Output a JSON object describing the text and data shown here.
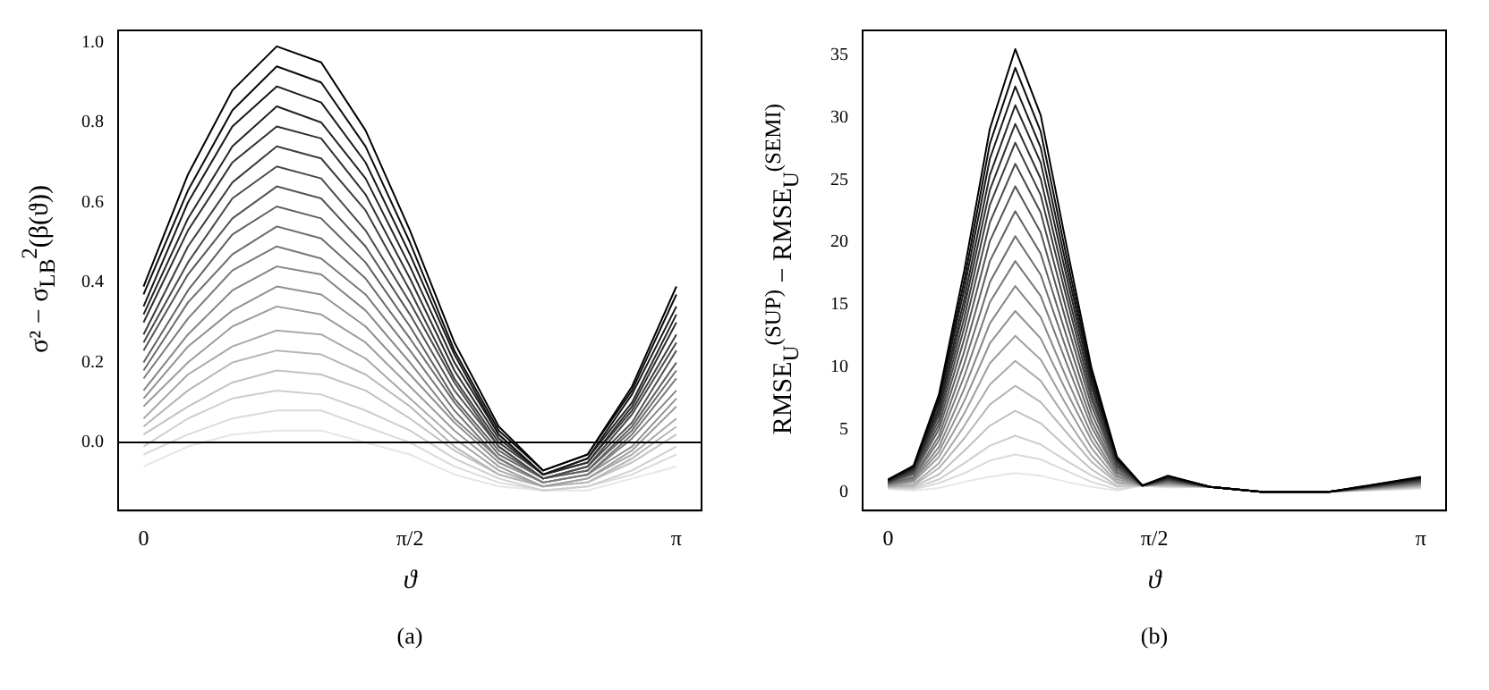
{
  "chart_data": [
    {
      "type": "line",
      "xlabel": "ϑ",
      "ylabel": "σ² − σ$_{LB}$$^{2}$(β(ϑ))",
      "annotations": [
        "(a)"
      ],
      "legend": false,
      "grid": false,
      "marker": "none",
      "x": [
        0,
        0.2618,
        0.5236,
        0.7854,
        1.0472,
        1.309,
        1.5708,
        1.8326,
        2.0944,
        2.3562,
        2.618,
        2.8798,
        3.1416
      ],
      "xlim": [
        -0.15,
        3.29
      ],
      "xticks": [
        {
          "value": 0,
          "label": "0"
        },
        {
          "value": 1.5708,
          "label": "π/2"
        },
        {
          "value": 3.1416,
          "label": "π"
        }
      ],
      "ylim": [
        -0.17,
        1.03
      ],
      "yticks": [
        {
          "value": 0,
          "label": "0.0"
        },
        {
          "value": 0.2,
          "label": "0.2"
        },
        {
          "value": 0.4,
          "label": "0.4"
        },
        {
          "value": 0.6,
          "label": "0.6"
        },
        {
          "value": 0.8,
          "label": "0.8"
        },
        {
          "value": 1,
          "label": "1.0"
        }
      ],
      "ref_lines": [
        {
          "axis": "y",
          "value": 0,
          "color": "#000000"
        }
      ],
      "series": [
        {
          "color": "#000000",
          "values": [
            0.39,
            0.67,
            0.88,
            0.99,
            0.95,
            0.78,
            0.53,
            0.25,
            0.04,
            -0.07,
            -0.03,
            0.14,
            0.39
          ]
        },
        {
          "color": "#0c0c0c",
          "values": [
            0.37,
            0.63,
            0.83,
            0.94,
            0.9,
            0.74,
            0.5,
            0.23,
            0.03,
            -0.07,
            -0.03,
            0.13,
            0.37
          ]
        },
        {
          "color": "#181818",
          "values": [
            0.34,
            0.6,
            0.79,
            0.89,
            0.85,
            0.7,
            0.47,
            0.22,
            0.02,
            -0.08,
            -0.04,
            0.12,
            0.34
          ]
        },
        {
          "color": "#242424",
          "values": [
            0.32,
            0.56,
            0.74,
            0.84,
            0.8,
            0.66,
            0.44,
            0.2,
            0.02,
            -0.08,
            -0.04,
            0.1,
            0.32
          ]
        },
        {
          "color": "#303030",
          "values": [
            0.3,
            0.53,
            0.7,
            0.79,
            0.76,
            0.62,
            0.41,
            0.18,
            0.01,
            -0.08,
            -0.05,
            0.09,
            0.3
          ]
        },
        {
          "color": "#3d3d3d",
          "values": [
            0.27,
            0.49,
            0.65,
            0.74,
            0.71,
            0.58,
            0.38,
            0.16,
            0.0,
            -0.08,
            -0.05,
            0.08,
            0.27
          ]
        },
        {
          "color": "#494949",
          "values": [
            0.25,
            0.45,
            0.61,
            0.69,
            0.66,
            0.53,
            0.35,
            0.15,
            -0.01,
            -0.09,
            -0.06,
            0.07,
            0.25
          ]
        },
        {
          "color": "#555555",
          "values": [
            0.23,
            0.42,
            0.56,
            0.64,
            0.61,
            0.49,
            0.32,
            0.13,
            -0.01,
            -0.09,
            -0.06,
            0.05,
            0.23
          ]
        },
        {
          "color": "#616161",
          "values": [
            0.2,
            0.38,
            0.52,
            0.59,
            0.56,
            0.45,
            0.29,
            0.11,
            -0.02,
            -0.09,
            -0.07,
            0.04,
            0.2
          ]
        },
        {
          "color": "#6d6d6d",
          "values": [
            0.18,
            0.35,
            0.47,
            0.54,
            0.51,
            0.41,
            0.26,
            0.1,
            -0.03,
            -0.09,
            -0.07,
            0.03,
            0.18
          ]
        },
        {
          "color": "#797979",
          "values": [
            0.16,
            0.31,
            0.43,
            0.49,
            0.46,
            0.37,
            0.23,
            0.08,
            -0.04,
            -0.1,
            -0.08,
            0.02,
            0.16
          ]
        },
        {
          "color": "#858585",
          "values": [
            0.13,
            0.27,
            0.38,
            0.44,
            0.42,
            0.33,
            0.2,
            0.06,
            -0.04,
            -0.1,
            -0.08,
            0.01,
            0.13
          ]
        },
        {
          "color": "#919191",
          "values": [
            0.11,
            0.24,
            0.33,
            0.39,
            0.37,
            0.29,
            0.17,
            0.05,
            -0.05,
            -0.1,
            -0.08,
            -0.01,
            0.11
          ]
        },
        {
          "color": "#9d9d9d",
          "values": [
            0.09,
            0.2,
            0.29,
            0.34,
            0.32,
            0.25,
            0.14,
            0.03,
            -0.06,
            -0.11,
            -0.09,
            -0.02,
            0.09
          ]
        },
        {
          "color": "#a9a9a9",
          "values": [
            0.06,
            0.17,
            0.24,
            0.28,
            0.27,
            0.21,
            0.11,
            0.01,
            -0.07,
            -0.11,
            -0.09,
            -0.03,
            0.06
          ]
        },
        {
          "color": "#b6b6b6",
          "values": [
            0.04,
            0.13,
            0.2,
            0.23,
            0.22,
            0.17,
            0.09,
            -0.01,
            -0.08,
            -0.11,
            -0.1,
            -0.04,
            0.04
          ]
        },
        {
          "color": "#c2c2c2",
          "values": [
            0.02,
            0.09,
            0.15,
            0.18,
            0.17,
            0.13,
            0.06,
            -0.02,
            -0.08,
            -0.11,
            -0.1,
            -0.05,
            0.02
          ]
        },
        {
          "color": "#cecece",
          "values": [
            -0.01,
            0.06,
            0.11,
            0.13,
            0.12,
            0.08,
            0.03,
            -0.04,
            -0.09,
            -0.12,
            -0.11,
            -0.07,
            -0.01
          ]
        },
        {
          "color": "#dadada",
          "values": [
            -0.03,
            0.02,
            0.06,
            0.08,
            0.08,
            0.04,
            0.0,
            -0.06,
            -0.1,
            -0.12,
            -0.11,
            -0.08,
            -0.03
          ]
        },
        {
          "color": "#e6e6e6",
          "values": [
            -0.06,
            -0.01,
            0.02,
            0.03,
            0.03,
            0.0,
            -0.03,
            -0.08,
            -0.11,
            -0.12,
            -0.12,
            -0.09,
            -0.06
          ]
        }
      ]
    },
    {
      "type": "line",
      "xlabel": "ϑ",
      "ylabel": "RMSE$_{U}$$^{(SUP)}$ − RMSE$_{U}$$^{(SEMI)}$",
      "annotations": [
        "(b)"
      ],
      "legend": false,
      "grid": false,
      "marker": "none",
      "x": [
        0,
        0.15,
        0.3,
        0.45,
        0.6,
        0.75,
        0.9,
        1.05,
        1.2,
        1.35,
        1.5,
        1.65,
        1.9,
        2.2,
        2.6,
        3.1416
      ],
      "xlim": [
        -0.15,
        3.29
      ],
      "xticks": [
        {
          "value": 0,
          "label": "0"
        },
        {
          "value": 1.5708,
          "label": "π/2"
        },
        {
          "value": 3.1416,
          "label": "π"
        }
      ],
      "ylim": [
        -1.5,
        37
      ],
      "yticks": [
        0,
        5,
        10,
        15,
        20,
        25,
        30,
        35
      ],
      "series": [
        {
          "color": "#000000",
          "values": [
            1.0,
            2.1,
            7.8,
            17.8,
            29.1,
            35.5,
            30.2,
            19.9,
            9.9,
            2.8,
            0.5,
            1.3,
            0.4,
            0,
            0,
            1.2
          ]
        },
        {
          "color": "#0c0c0c",
          "values": [
            0.96,
            2.0,
            7.5,
            17,
            27.9,
            34,
            28.9,
            19.0,
            9.5,
            2.7,
            0.5,
            1.25,
            0.4,
            0,
            0,
            1.15
          ]
        },
        {
          "color": "#181818",
          "values": [
            0.92,
            2.0,
            7.2,
            16.3,
            26.7,
            32.5,
            27.6,
            18.2,
            9.1,
            2.6,
            0.5,
            1.2,
            0.4,
            0,
            0,
            1.1
          ]
        },
        {
          "color": "#242424",
          "values": [
            0.88,
            1.9,
            6.8,
            15.5,
            25.4,
            31,
            26.4,
            17.4,
            8.7,
            2.5,
            0.5,
            1.15,
            0.4,
            0,
            0,
            1.05
          ]
        },
        {
          "color": "#303030",
          "values": [
            0.84,
            1.8,
            6.5,
            14.8,
            24.2,
            29.5,
            25.1,
            16.5,
            8.3,
            2.4,
            0.5,
            1.1,
            0.4,
            0,
            0,
            1.0
          ]
        },
        {
          "color": "#3d3d3d",
          "values": [
            0.8,
            1.7,
            6.2,
            14,
            23,
            28,
            23.8,
            15.7,
            7.8,
            2.2,
            0.5,
            1.05,
            0.4,
            0,
            0,
            0.95
          ]
        },
        {
          "color": "#494949",
          "values": [
            0.76,
            1.6,
            5.8,
            13.2,
            21.6,
            26.3,
            22.4,
            14.7,
            7.4,
            2.1,
            0.5,
            1.0,
            0.4,
            0,
            0,
            0.9
          ]
        },
        {
          "color": "#555555",
          "values": [
            0.72,
            1.5,
            5.4,
            12.3,
            20.1,
            24.5,
            20.8,
            13.7,
            6.9,
            2.0,
            0.5,
            0.95,
            0.4,
            0,
            0,
            0.85
          ]
        },
        {
          "color": "#616161",
          "values": [
            0.68,
            1.4,
            5.0,
            11.3,
            18.5,
            22.5,
            19.1,
            12.6,
            6.3,
            1.8,
            0.5,
            0.9,
            0.4,
            0,
            0,
            0.8
          ]
        },
        {
          "color": "#6d6d6d",
          "values": [
            0.64,
            1.2,
            4.5,
            10.3,
            16.8,
            20.5,
            17.4,
            11.5,
            5.7,
            1.6,
            0.5,
            0.85,
            0.4,
            0,
            0,
            0.75
          ]
        },
        {
          "color": "#797979",
          "values": [
            0.6,
            1.1,
            4.1,
            9.3,
            15.2,
            18.5,
            15.7,
            10.4,
            5.2,
            1.5,
            0.5,
            0.8,
            0.4,
            0,
            0,
            0.7
          ]
        },
        {
          "color": "#858585",
          "values": [
            0.56,
            1.0,
            3.6,
            8.3,
            13.5,
            16.5,
            14.0,
            9.2,
            4.6,
            1.3,
            0.5,
            0.75,
            0.4,
            0,
            0,
            0.65
          ]
        },
        {
          "color": "#919191",
          "values": [
            0.52,
            0.9,
            3.2,
            7.3,
            11.9,
            14.5,
            12.3,
            8.1,
            4.1,
            1.2,
            0.5,
            0.7,
            0.4,
            0,
            0,
            0.6
          ]
        },
        {
          "color": "#9d9d9d",
          "values": [
            0.48,
            0.8,
            2.8,
            6.3,
            10.3,
            12.5,
            10.6,
            7.0,
            3.5,
            1.0,
            0.5,
            0.65,
            0.4,
            0,
            0,
            0.55
          ]
        },
        {
          "color": "#a9a9a9",
          "values": [
            0.44,
            0.6,
            2.3,
            5.3,
            8.6,
            10.5,
            8.9,
            5.9,
            2.9,
            0.8,
            0.5,
            0.6,
            0.4,
            0,
            0,
            0.5
          ]
        },
        {
          "color": "#b6b6b6",
          "values": [
            0.4,
            0.5,
            1.9,
            4.3,
            7.0,
            8.5,
            7.2,
            4.8,
            2.4,
            0.7,
            0.5,
            0.55,
            0.4,
            0,
            0,
            0.45
          ]
        },
        {
          "color": "#c2c2c2",
          "values": [
            0.36,
            0.4,
            1.4,
            3.3,
            5.3,
            6.5,
            5.5,
            3.6,
            1.8,
            0.5,
            0.5,
            0.5,
            0.4,
            0,
            0,
            0.4
          ]
        },
        {
          "color": "#cecece",
          "values": [
            0.32,
            0.3,
            1.0,
            2.3,
            3.7,
            4.5,
            3.8,
            2.5,
            1.3,
            0.4,
            0.5,
            0.45,
            0.4,
            0,
            0,
            0.35
          ]
        },
        {
          "color": "#dadada",
          "values": [
            0.28,
            0.2,
            0.7,
            1.5,
            2.5,
            3,
            2.6,
            1.7,
            0.8,
            0.2,
            0.5,
            0.4,
            0.4,
            0,
            0,
            0.3
          ]
        },
        {
          "color": "#e6e6e6",
          "values": [
            0.24,
            0.1,
            0.3,
            0.8,
            1.2,
            1.5,
            1.3,
            0.8,
            0.4,
            0.1,
            0.5,
            0.35,
            0.4,
            0,
            0,
            0.25
          ]
        }
      ]
    }
  ]
}
